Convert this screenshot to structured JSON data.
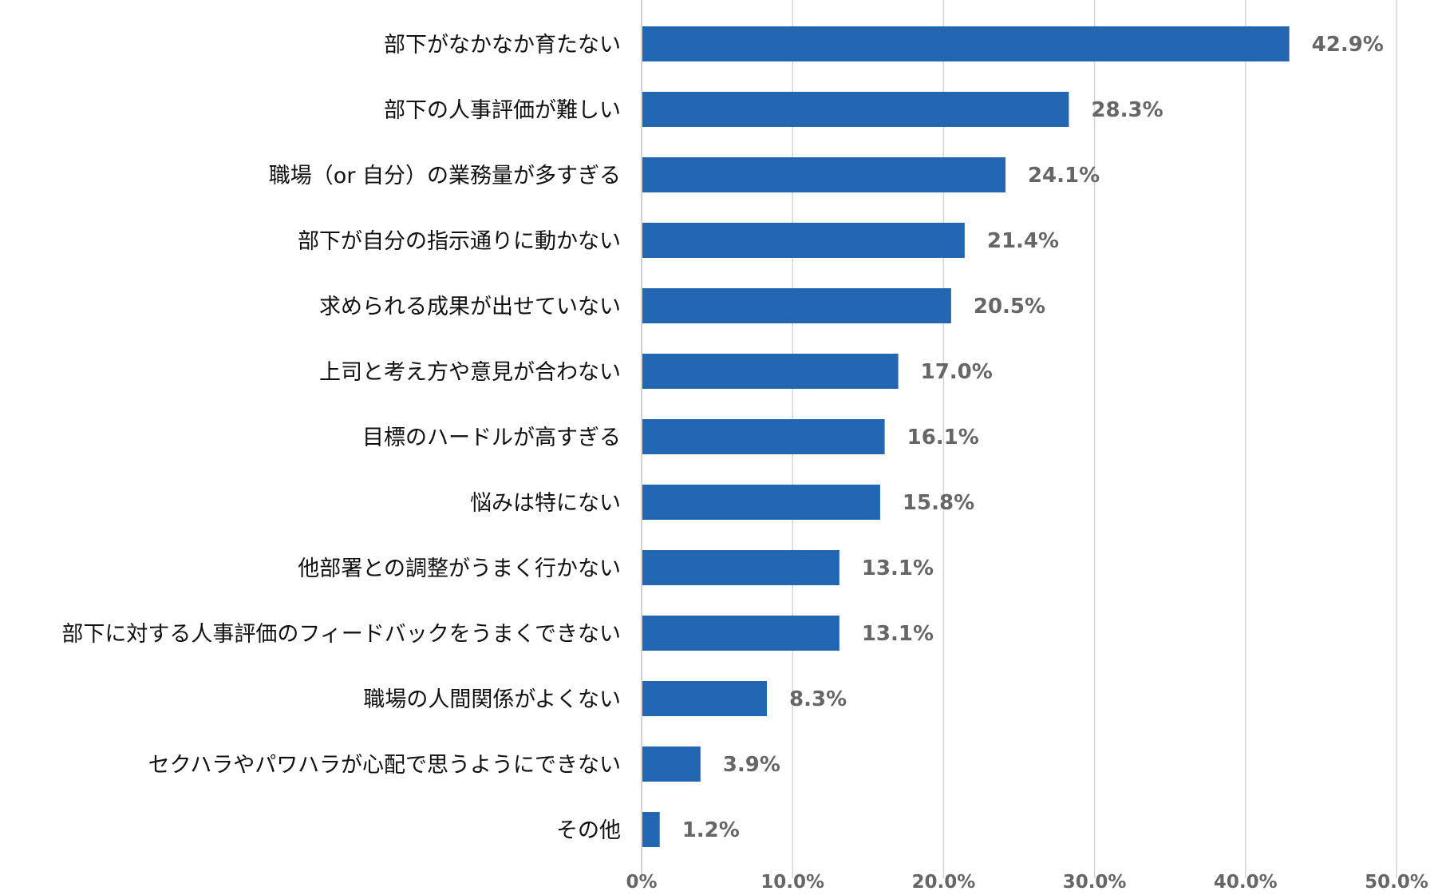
{
  "chart_data": {
    "type": "bar",
    "orientation": "horizontal",
    "title": "",
    "xlabel": "",
    "ylabel": "",
    "xlim": [
      0,
      50
    ],
    "grid": true,
    "bar_color": "#2366b2",
    "x_ticks": [
      "0%",
      "10.0%",
      "20.0%",
      "30.0%",
      "40.0%",
      "50.0%"
    ],
    "x_tick_values": [
      0,
      10,
      20,
      30,
      40,
      50
    ],
    "categories": [
      "部下がなかなか育たない",
      "部下の人事評価が難しい",
      "職場（or 自分）の業務量が多すぎる",
      "部下が自分の指示通りに動かない",
      "求められる成果が出せていない",
      "上司と考え方や意見が合わない",
      "目標のハードルが高すぎる",
      "悩みは特にない",
      "他部署との調整がうまく行かない",
      "部下に対する人事評価のフィードバックをうまくできない",
      "職場の人間関係がよくない",
      "セクハラやパワハラが心配で思うようにできない",
      "その他"
    ],
    "values": [
      42.9,
      28.3,
      24.1,
      21.4,
      20.5,
      17.0,
      16.1,
      15.8,
      13.1,
      13.1,
      8.3,
      3.9,
      1.2
    ],
    "value_labels": [
      "42.9%",
      "28.3%",
      "24.1%",
      "21.4%",
      "20.5%",
      "17.0%",
      "16.1%",
      "15.8%",
      "13.1%",
      "13.1%",
      "8.3%",
      "3.9%",
      "1.2%"
    ]
  }
}
